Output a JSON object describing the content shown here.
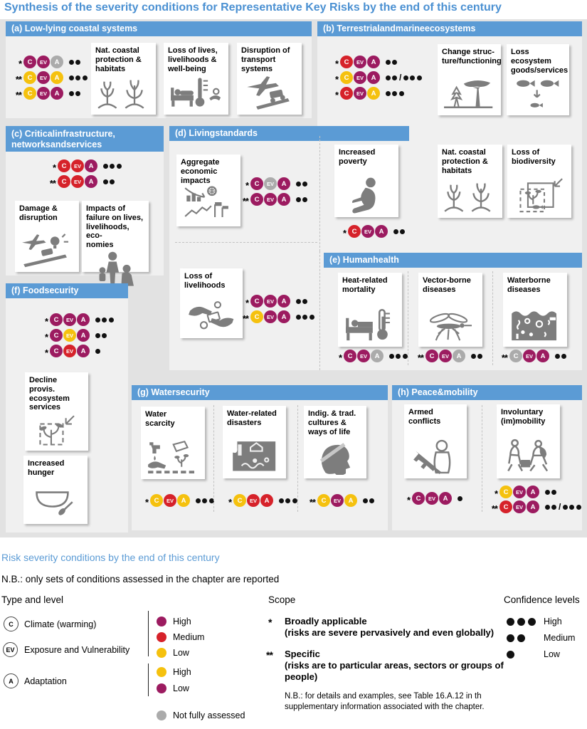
{
  "title": "Synthesis of the severity conditions for Representative Key Risks by the end of this century",
  "palette": {
    "purple": "#9c1b60",
    "red": "#d6222a",
    "yellow": "#f5c10e",
    "gray": "#ababab",
    "header_blue": "#5b9bd5",
    "title_blue": "#4a90d2",
    "icon_gray": "#7d7d7d",
    "dot_black": "#111111"
  },
  "sections": {
    "a": {
      "title": "(a) Low-lying coastal systems",
      "rows": [
        {
          "scope": "*",
          "C": "purple",
          "EV": "purple",
          "A": "gray",
          "dots": "2"
        },
        {
          "scope": "**",
          "C": "yellow",
          "EV": "purple",
          "A": "yellow",
          "dots": "3"
        },
        {
          "scope": "**",
          "C": "yellow",
          "EV": "purple",
          "A": "purple",
          "dots": "2"
        }
      ],
      "cards": [
        {
          "text": "Nat. coastal\nprotection &\nhabitats",
          "icon": "coastal-habitat-icon"
        },
        {
          "text": "Loss of lives,\nlivelihoods &\nwell-being",
          "icon": "loss-of-lives-icon"
        },
        {
          "text": "Disruption of\ntransport\nsystems",
          "icon": "transport-disruption-icon"
        }
      ]
    },
    "b": {
      "title": "(b) Terrestrialandmarineecosystems",
      "rows": [
        {
          "scope": "*",
          "C": "red",
          "EV": "purple",
          "A": "purple",
          "dots": "2"
        },
        {
          "scope": "*",
          "C": "yellow",
          "EV": "purple",
          "A": "purple",
          "dots": "2/3"
        },
        {
          "scope": "*",
          "C": "red",
          "EV": "purple",
          "A": "yellow",
          "dots": "3"
        }
      ],
      "cards": [
        {
          "text": "Change struc-\nture/functioning",
          "icon": "ecosystem-structure-icon"
        },
        {
          "text": "Loss\necosystem\ngoods/services",
          "icon": "ecosystem-goods-icon"
        },
        {
          "text": "Nat. coastal\nprotection &\nhabitats",
          "icon": "coastal-habitat-icon"
        },
        {
          "text": "Loss of\nbiodiversity",
          "icon": "biodiversity-loss-icon"
        }
      ]
    },
    "c": {
      "title": "(c) Criticalinfrastructure,\nnetworksandservices",
      "rows": [
        {
          "scope": "*",
          "C": "red",
          "EV": "red",
          "A": "purple",
          "dots": "3"
        },
        {
          "scope": "**",
          "C": "red",
          "EV": "red",
          "A": "purple",
          "dots": "2"
        }
      ],
      "cards": [
        {
          "text": "Damage &\ndisruption",
          "icon": "damage-disruption-icon"
        },
        {
          "text": "Impacts of\nfailure on lives,\nlivelihoods, eco-\nnomies",
          "icon": "failure-impacts-icon"
        }
      ]
    },
    "d": {
      "title": "(d) Livingstandards",
      "groups": [
        {
          "card": {
            "text": "Aggregate\neconomic\nimpacts",
            "icon": "economic-impacts-icon"
          },
          "rows": [
            {
              "scope": "*",
              "C": "purple",
              "EV": "gray",
              "A": "purple",
              "dots": "2"
            },
            {
              "scope": "**",
              "C": "purple",
              "EV": "purple",
              "A": "purple",
              "dots": "2"
            }
          ]
        },
        {
          "card": {
            "text": "Increased\npoverty",
            "icon": "poverty-icon"
          },
          "rows": [
            {
              "scope": "*",
              "C": "red",
              "EV": "purple",
              "A": "purple",
              "dots": "2"
            }
          ]
        },
        {
          "card": {
            "text": "Loss of\nlivelihoods",
            "icon": "livelihoods-icon"
          },
          "rows": [
            {
              "scope": "*",
              "C": "purple",
              "EV": "purple",
              "A": "purple",
              "dots": "2"
            },
            {
              "scope": "**",
              "C": "yellow",
              "EV": "purple",
              "A": "purple",
              "dots": "3"
            }
          ]
        }
      ]
    },
    "e": {
      "title": "(e) Humanhealth",
      "groups": [
        {
          "card": {
            "text": "Heat-related\nmortality",
            "icon": "heat-mortality-icon"
          },
          "rows": [
            {
              "scope": "*",
              "C": "purple",
              "EV": "purple",
              "A": "gray",
              "dots": "3"
            }
          ]
        },
        {
          "card": {
            "text": "Vector-borne\ndiseases",
            "icon": "vector-borne-icon"
          },
          "rows": [
            {
              "scope": "**",
              "C": "purple",
              "EV": "purple",
              "A": "gray",
              "dots": "2"
            }
          ]
        },
        {
          "card": {
            "text": "Waterborne\ndiseases",
            "icon": "waterborne-icon"
          },
          "rows": [
            {
              "scope": "**",
              "C": "gray",
              "EV": "purple",
              "A": "purple",
              "dots": "2"
            }
          ]
        }
      ]
    },
    "f": {
      "title": "(f) Foodsecurity",
      "rows": [
        {
          "scope": "*",
          "C": "purple",
          "EV": "purple",
          "A": "purple",
          "dots": "3"
        },
        {
          "scope": "*",
          "C": "purple",
          "EV": "yellow",
          "A": "purple",
          "dots": "2"
        },
        {
          "scope": "*",
          "C": "purple",
          "EV": "red",
          "A": "purple",
          "dots": "1"
        }
      ],
      "cards": [
        {
          "text": "Decline provis.\necosystem\nservices",
          "icon": "ecosystem-decline-icon"
        },
        {
          "text": "Increased\nhunger",
          "icon": "hunger-icon"
        }
      ]
    },
    "g": {
      "title": "(g) Watersecurity",
      "groups": [
        {
          "card": {
            "text": "Water\nscarcity",
            "icon": "water-scarcity-icon"
          },
          "rows": [
            {
              "scope": "*",
              "C": "yellow",
              "EV": "red",
              "A": "yellow",
              "dots": "3"
            }
          ]
        },
        {
          "card": {
            "text": "Water-related\ndisasters",
            "icon": "water-disasters-icon"
          },
          "rows": [
            {
              "scope": "*",
              "C": "yellow",
              "EV": "red",
              "A": "red",
              "dots": "3"
            }
          ]
        },
        {
          "card": {
            "text": "Indig. & trad.\ncultures &\nways of life",
            "icon": "indigenous-cultures-icon"
          },
          "rows": [
            {
              "scope": "**",
              "C": "yellow",
              "EV": "purple",
              "A": "yellow",
              "dots": "2"
            }
          ]
        }
      ]
    },
    "h": {
      "title": "(h) Peace&mobility",
      "groups": [
        {
          "card": {
            "text": "Armed\nconflicts",
            "icon": "armed-conflict-icon"
          },
          "rows": [
            {
              "scope": "*",
              "C": "purple",
              "EV": "purple",
              "A": "purple",
              "dots": "1"
            }
          ]
        },
        {
          "card": {
            "text": "Involuntary\n(im)mobility",
            "icon": "mobility-icon"
          },
          "rows": [
            {
              "scope": "*",
              "C": "yellow",
              "EV": "purple",
              "A": "purple",
              "dots": "2"
            },
            {
              "scope": "**",
              "C": "red",
              "EV": "purple",
              "A": "purple",
              "dots": "2/3"
            }
          ]
        }
      ]
    }
  },
  "legend": {
    "subtitle": "Risk severity conditions by the end of this century",
    "note": "N.B.: only sets of conditions assessed in the chapter are reported",
    "type_and_level": {
      "heading": "Type and level",
      "types": [
        {
          "symbol": "C",
          "label": "Climate (warming)"
        },
        {
          "symbol": "EV",
          "label": "Exposure and Vulnerability"
        },
        {
          "symbol": "A",
          "label": "Adaptation"
        }
      ],
      "cev_levels": [
        {
          "label": "High",
          "color": "purple"
        },
        {
          "label": "Medium",
          "color": "red"
        },
        {
          "label": "Low",
          "color": "yellow"
        }
      ],
      "a_levels": [
        {
          "label": "High",
          "color": "yellow"
        },
        {
          "label": "Low",
          "color": "purple"
        }
      ],
      "not_assessed": {
        "label": "Not fully assessed",
        "color": "gray"
      }
    },
    "scope": {
      "heading": "Scope",
      "items": [
        {
          "marker": "*",
          "label": "Broadly applicable",
          "detail": "(risks are severe pervasively and even globally)"
        },
        {
          "marker": "**",
          "label": "Specific",
          "detail": "(risks are to particular areas, sectors or groups of\npeople)"
        }
      ],
      "note": "N.B.: for details and examples, see Table 16.A.12 in th\nsupplementary information associated with the chapter."
    },
    "confidence": {
      "heading": "Confidence levels",
      "items": [
        {
          "dots": "3",
          "label": "High"
        },
        {
          "dots": "2",
          "label": "Medium"
        },
        {
          "dots": "1",
          "label": "Low"
        }
      ]
    }
  }
}
